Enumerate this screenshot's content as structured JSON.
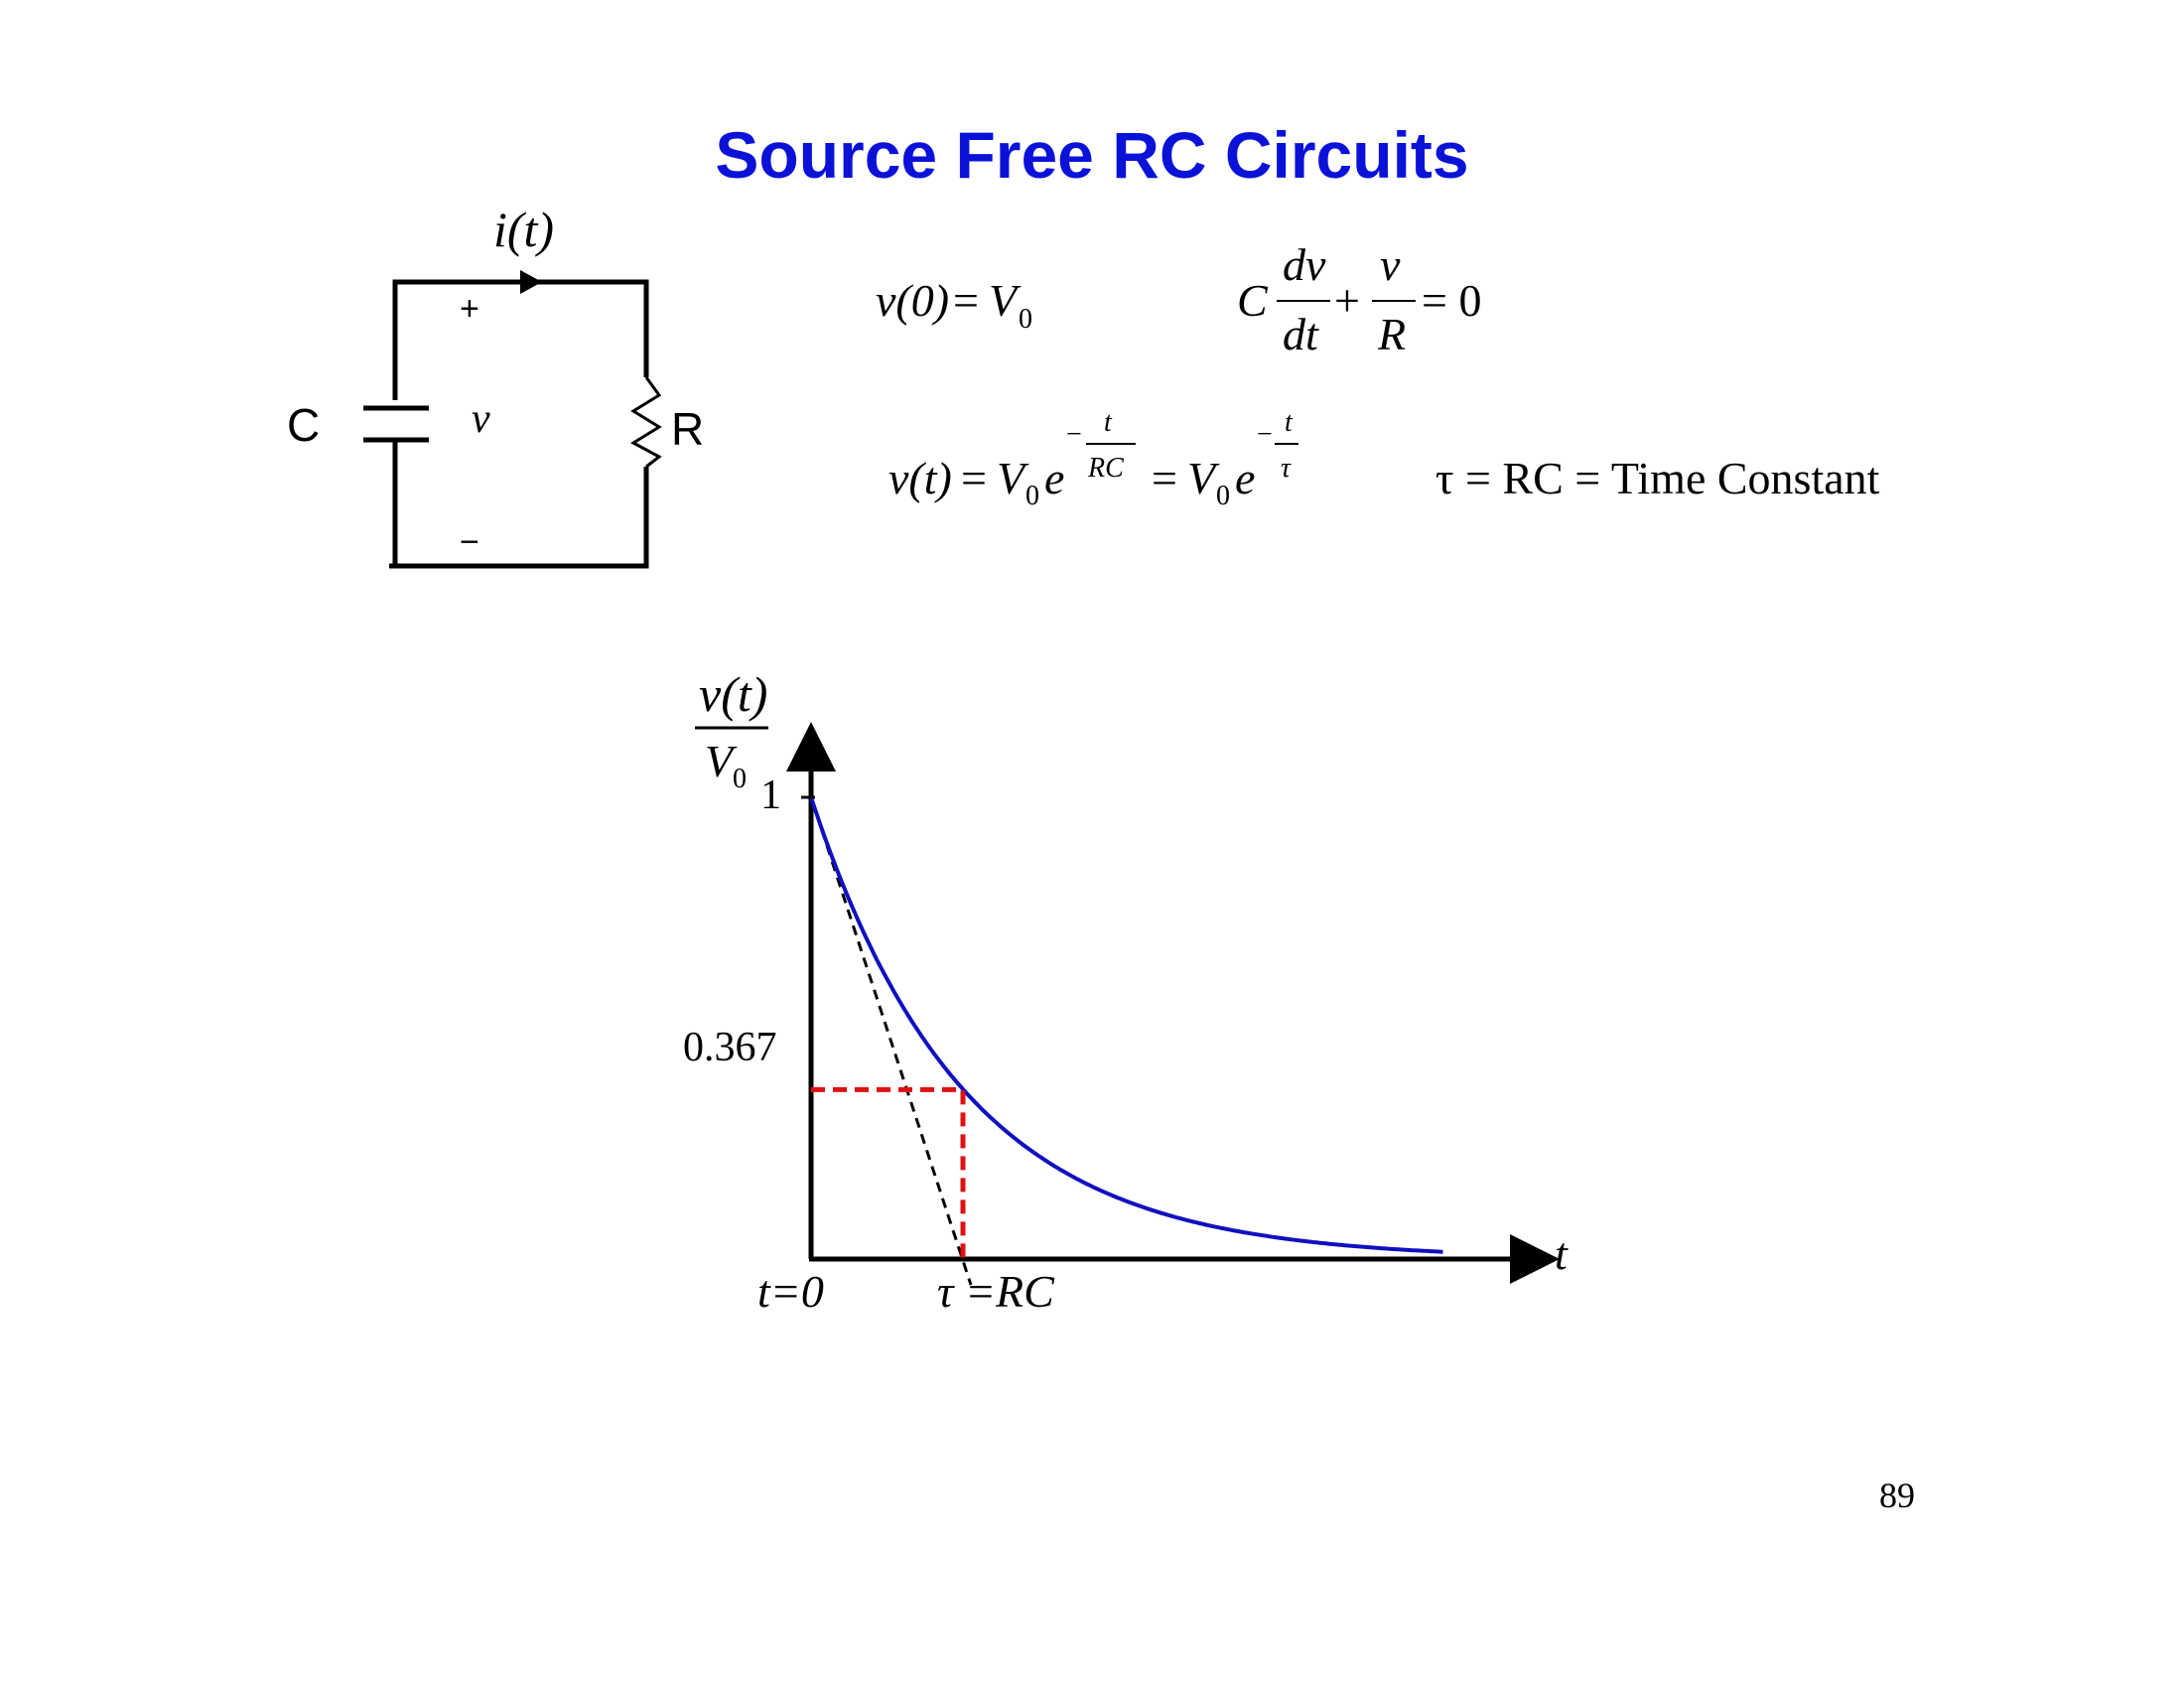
{
  "slide": {
    "title": "Source Free RC Circuits",
    "page_number": "89"
  },
  "circuit": {
    "current_label": "i(t)",
    "capacitor_label": "C",
    "resistor_label": "R",
    "voltage_label": "v",
    "plus_sign": "+",
    "minus_sign": "−"
  },
  "equations": {
    "initial_condition": {
      "lhs": "v(0)",
      "eq": "=",
      "rhs": "V",
      "rhs_sub": "0"
    },
    "differential": {
      "coef": "C",
      "frac1_num": "dv",
      "frac1_den": "dt",
      "plus": "+",
      "frac2_num": "v",
      "frac2_den": "R",
      "eq": "= 0"
    },
    "solution": {
      "lhs": "v(t)",
      "eq1": "=",
      "v0": "V",
      "v0_sub": "0",
      "e": "e",
      "exp1_num": "t",
      "exp1_den": "RC",
      "eq2": "=",
      "exp2_num": "t",
      "exp2_den": "τ",
      "minus": "−"
    },
    "time_constant": "τ = RC = Time Constant"
  },
  "chart_data": {
    "type": "line",
    "ylabel_num": "v(t)",
    "ylabel_den": "V",
    "ylabel_den_sub": "0",
    "xlabel": "t",
    "y_tick_1": "1",
    "y_tick_0367": "0.367",
    "x_tick_0": "t=0",
    "x_tick_tau": "τ =RC",
    "series": [
      {
        "x_tau": [
          0,
          0.1,
          0.2,
          0.3,
          0.4,
          0.5,
          0.6,
          0.7,
          0.8,
          0.9,
          1.0,
          1.5,
          2.0,
          2.5,
          3.0,
          3.5,
          4.0,
          4.16
        ],
        "y": [
          1.0,
          0.905,
          0.819,
          0.741,
          0.67,
          0.607,
          0.549,
          0.497,
          0.449,
          0.407,
          0.367,
          0.223,
          0.135,
          0.082,
          0.05,
          0.03,
          0.018,
          0.016
        ]
      }
    ],
    "tangent": {
      "from": [
        0,
        1
      ],
      "to": [
        1,
        0
      ]
    },
    "tau_marker": {
      "x": 1,
      "y": 0.367
    },
    "colors": {
      "curve": "#1010c0",
      "tangent": "#000000",
      "marker": "#dd1111"
    }
  }
}
